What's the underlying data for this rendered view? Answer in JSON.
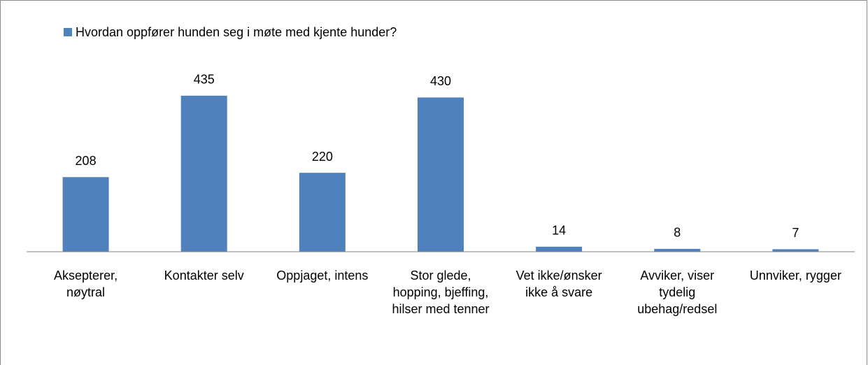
{
  "chart_data": {
    "type": "bar",
    "legend": "Hvordan oppfører hunden seg i møte med kjente hunder?",
    "legend_position": "top-left",
    "categories": [
      "Aksepterer, nøytral",
      "Kontakter selv",
      "Oppjaget, intens",
      "Stor glede, hopping, bjeffing, hilser med tenner",
      "Vet ikke/ønsker ikke å svare",
      "Avviker, viser tydelig ubehag/redsel",
      "Unnviker, rygger"
    ],
    "values": [
      208,
      435,
      220,
      430,
      14,
      8,
      7
    ],
    "color": "#4f81bd",
    "ylim": [
      0,
      500
    ]
  }
}
